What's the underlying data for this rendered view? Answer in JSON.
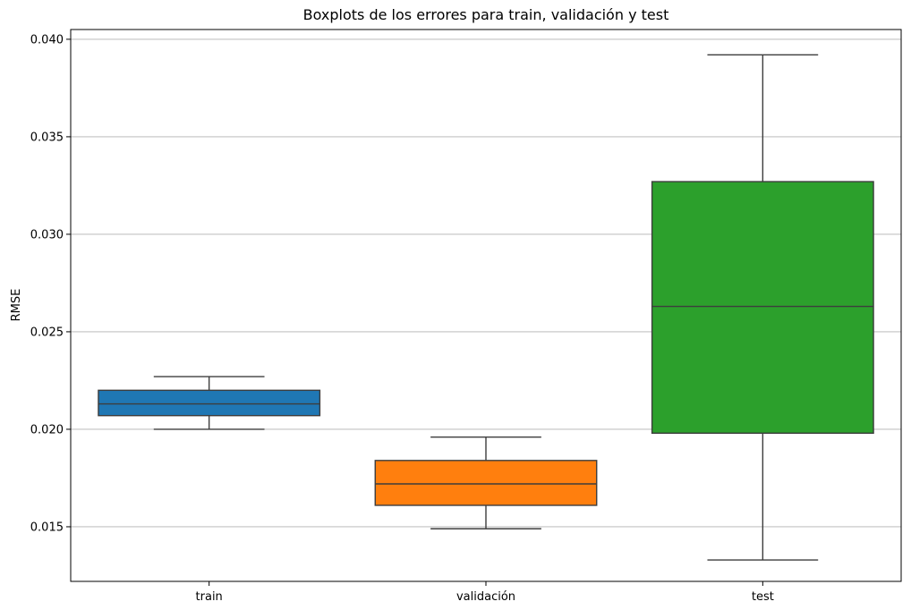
{
  "chart_data": {
    "type": "box",
    "title": "Boxplots de los errores para train, validación y test",
    "xlabel": "",
    "ylabel": "RMSE",
    "ylim": [
      0.0122,
      0.0405
    ],
    "yticks": [
      0.015,
      0.02,
      0.025,
      0.03,
      0.035,
      0.04
    ],
    "ytick_labels": [
      "0.015",
      "0.020",
      "0.025",
      "0.030",
      "0.035",
      "0.040"
    ],
    "grid": "y-major",
    "categories": [
      "train",
      "validación",
      "test"
    ],
    "boxes": [
      {
        "category": "train",
        "whisker_low": 0.02,
        "q1": 0.0207,
        "median": 0.0213,
        "q3": 0.022,
        "whisker_high": 0.0227,
        "color": "#1f77b4"
      },
      {
        "category": "validación",
        "whisker_low": 0.0149,
        "q1": 0.0161,
        "median": 0.0172,
        "q3": 0.0184,
        "whisker_high": 0.0196,
        "color": "#ff7f0e"
      },
      {
        "category": "test",
        "whisker_low": 0.0133,
        "q1": 0.0198,
        "median": 0.0263,
        "q3": 0.0327,
        "whisker_high": 0.0392,
        "color": "#2ca02c"
      }
    ]
  }
}
